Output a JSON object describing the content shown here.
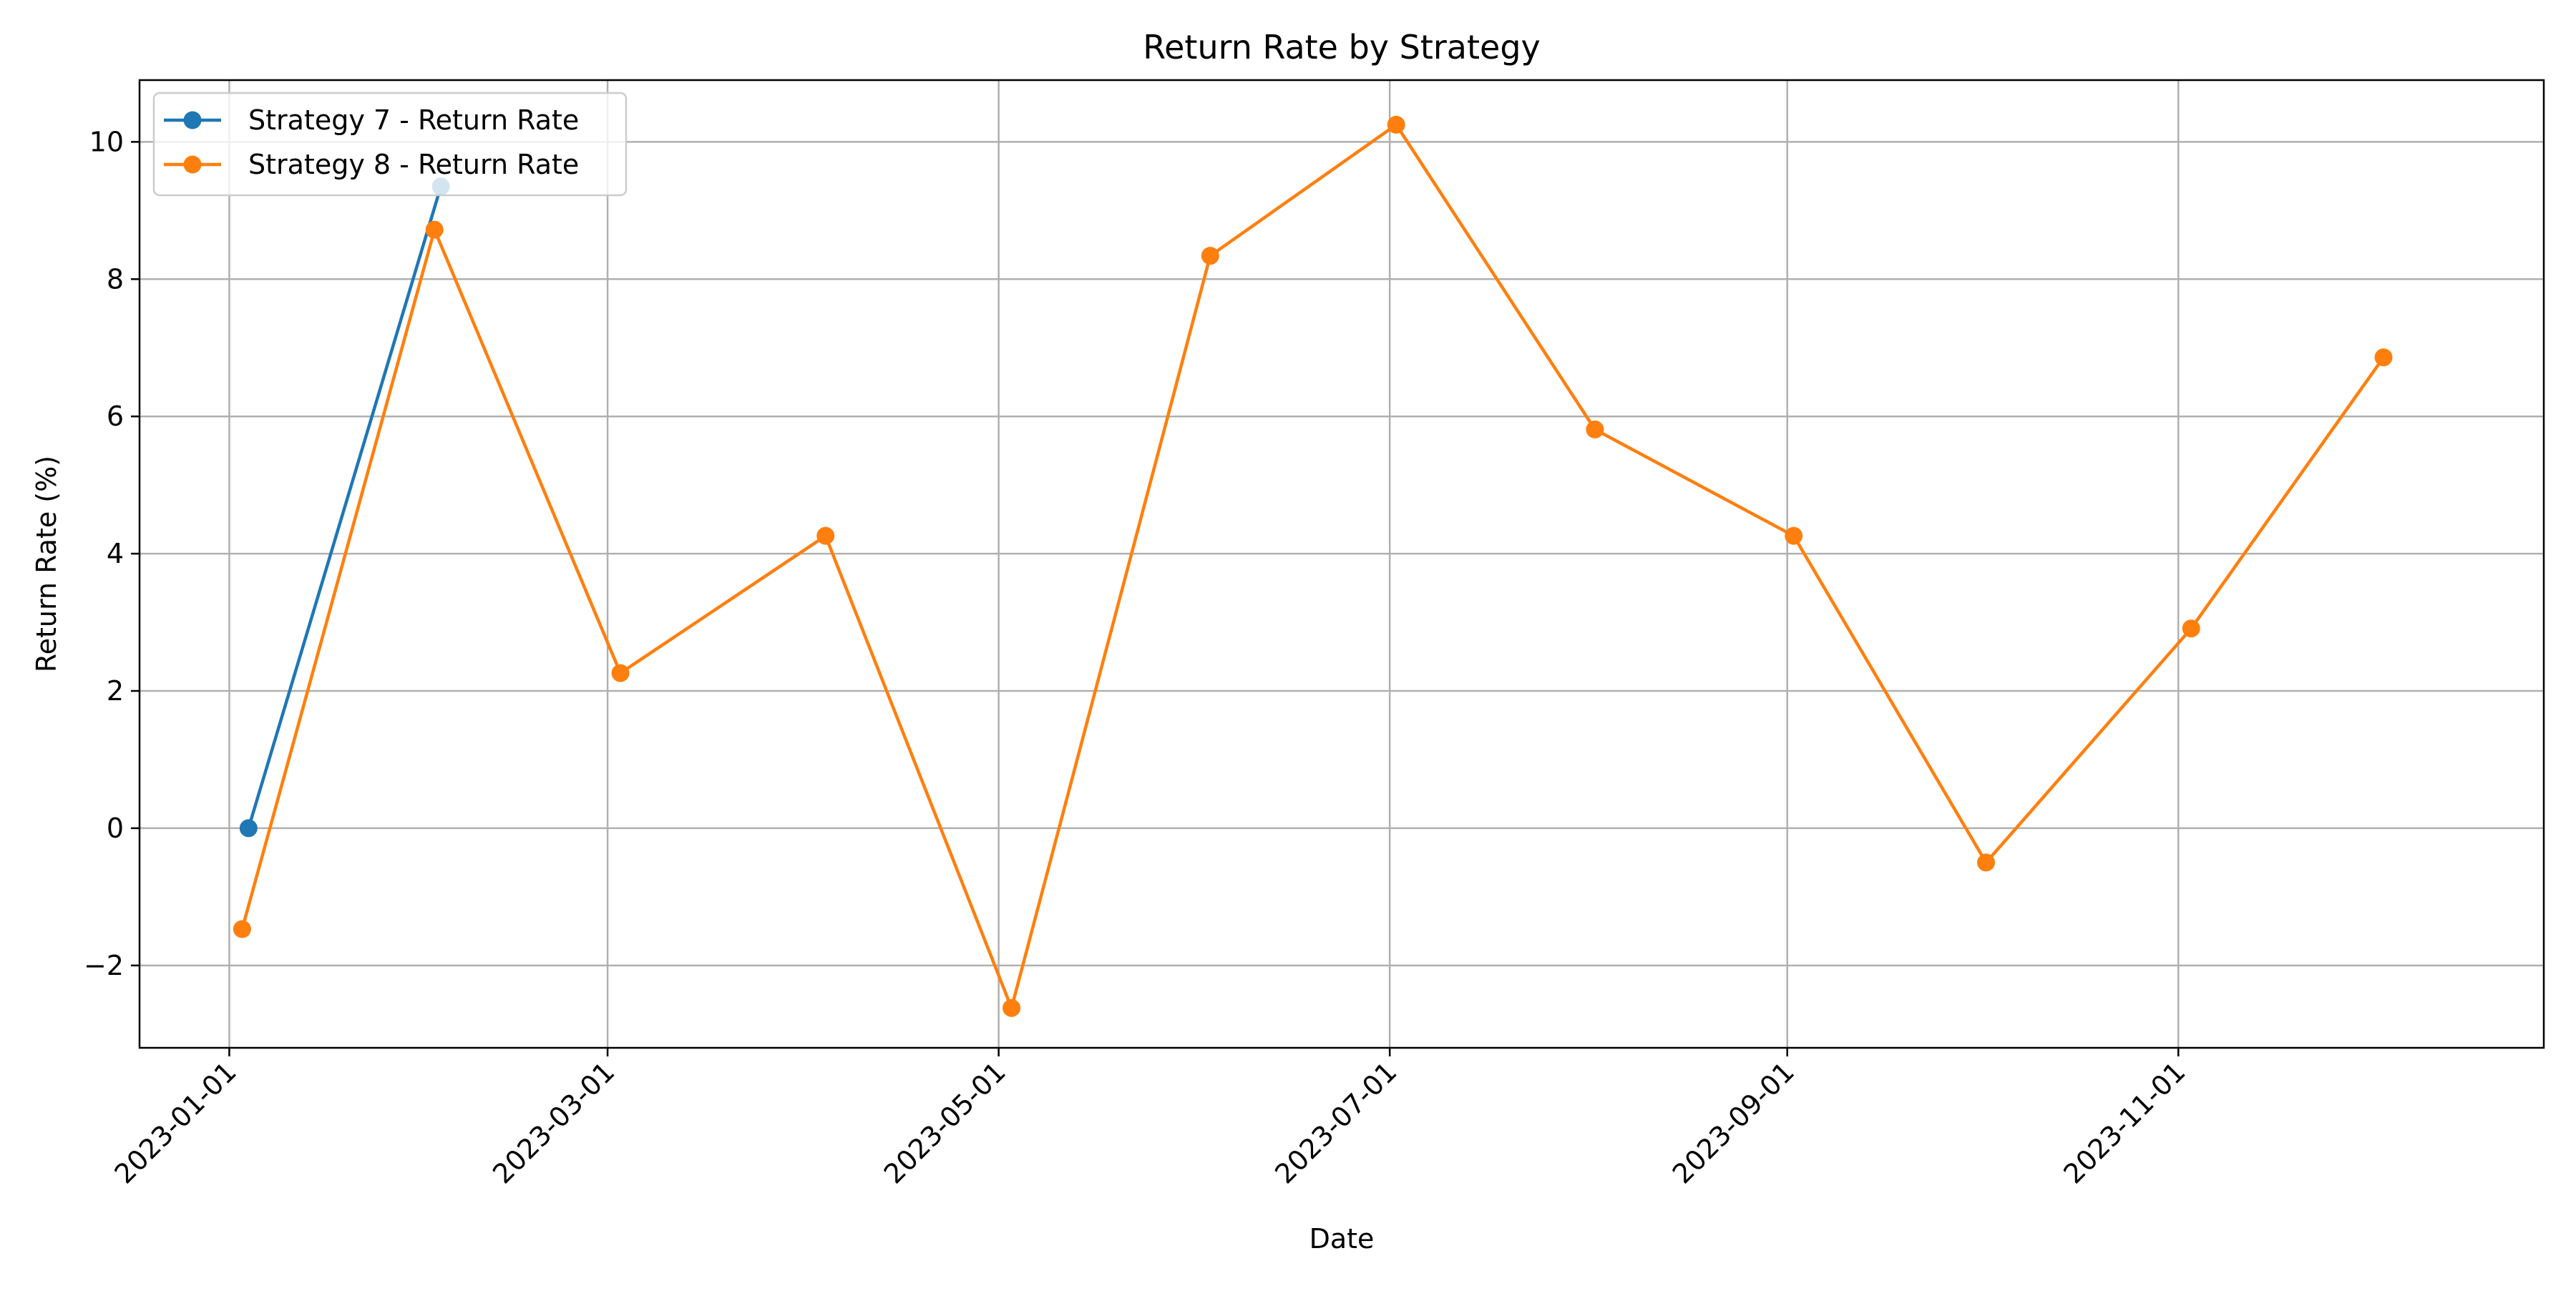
{
  "chart_data": {
    "type": "line",
    "title": "Return Rate by Strategy",
    "xlabel": "Date",
    "ylabel": "Return Rate (%)",
    "x_ticks": [
      "2023-01-01",
      "2023-03-01",
      "2023-05-01",
      "2023-07-01",
      "2023-09-01",
      "2023-11-01"
    ],
    "y_ticks": [
      -2,
      0,
      2,
      4,
      6,
      8,
      10
    ],
    "ylim": [
      -3.2,
      10.9
    ],
    "xlim": [
      "2022-12-18",
      "2023-12-28"
    ],
    "grid": true,
    "legend_position": "top-left",
    "series": [
      {
        "name": "Strategy 7 - Return Rate",
        "color": "#1f77b4",
        "points": [
          {
            "x": "2023-01-04",
            "y": 0.0
          },
          {
            "x": "2023-02-03",
            "y": 9.35
          }
        ]
      },
      {
        "name": "Strategy 8 - Return Rate",
        "color": "#ff7f0e",
        "points": [
          {
            "x": "2023-01-03",
            "y": -1.47
          },
          {
            "x": "2023-02-02",
            "y": 8.72
          },
          {
            "x": "2023-03-03",
            "y": 2.26
          },
          {
            "x": "2023-04-04",
            "y": 4.26
          },
          {
            "x": "2023-05-03",
            "y": -2.62
          },
          {
            "x": "2023-06-03",
            "y": 8.34
          },
          {
            "x": "2023-07-02",
            "y": 10.25
          },
          {
            "x": "2023-08-02",
            "y": 5.81
          },
          {
            "x": "2023-09-02",
            "y": 4.26
          },
          {
            "x": "2023-10-02",
            "y": -0.5
          },
          {
            "x": "2023-11-03",
            "y": 2.91
          },
          {
            "x": "2023-12-03",
            "y": 6.86
          }
        ]
      }
    ]
  }
}
